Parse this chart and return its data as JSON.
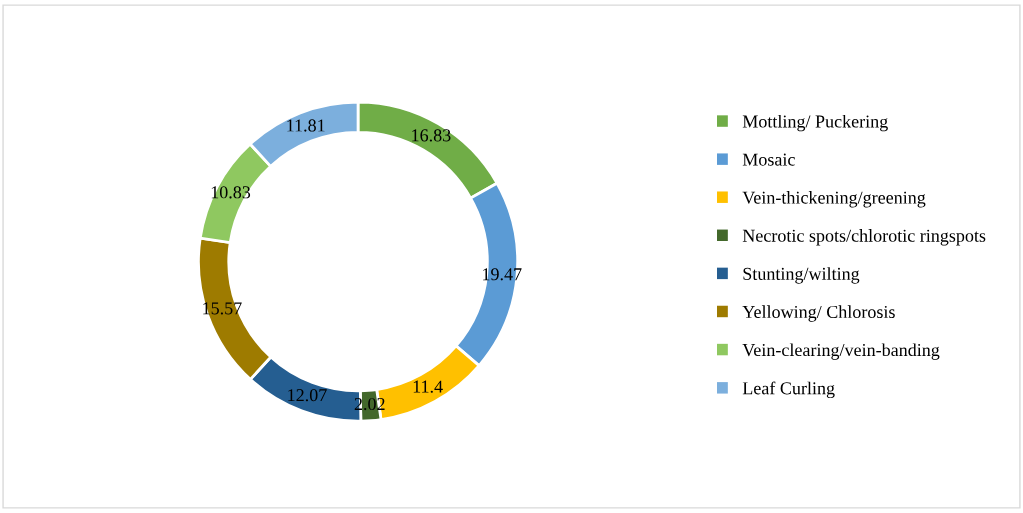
{
  "chart_data": {
    "type": "donut",
    "categories": [
      "Mottling/ Puckering",
      "Mosaic",
      "Vein-thickening/greening",
      "Necrotic spots/chlorotic ringspots",
      "Stunting/wilting",
      "Yellowing/ Chlorosis",
      "Vein-clearing/vein-banding",
      "Leaf Curling"
    ],
    "values": [
      16.83,
      19.47,
      11.4,
      2.02,
      12.07,
      15.57,
      10.83,
      11.81
    ],
    "colors": [
      "#70ad47",
      "#5b9bd5",
      "#ffc000",
      "#43682b",
      "#255e91",
      "#9e7b00",
      "#8fc860",
      "#7cafdd"
    ],
    "data_labels": true,
    "legend": "right"
  }
}
